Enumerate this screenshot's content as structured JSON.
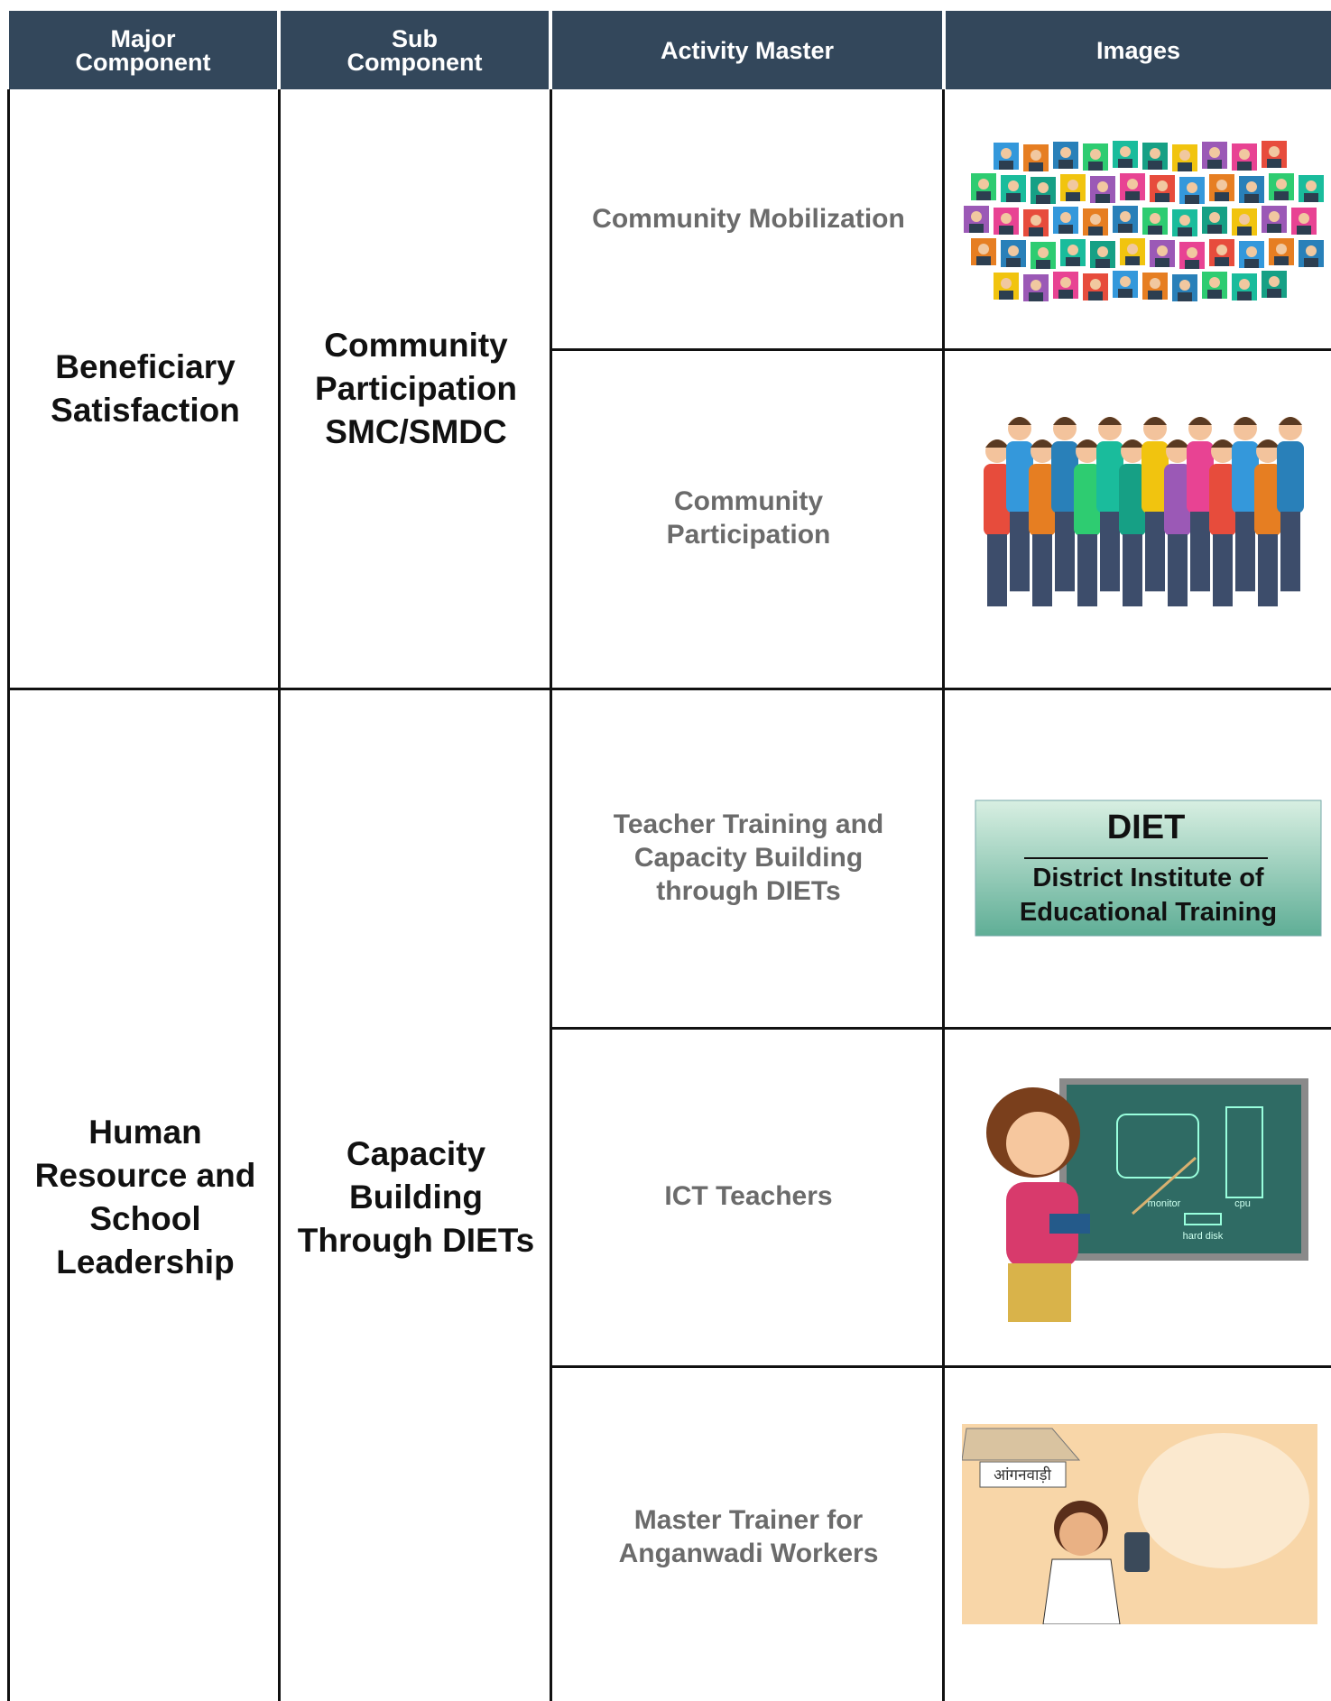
{
  "table": {
    "headers": [
      "Major Component",
      "Sub Component",
      "Activity Master",
      "Images"
    ],
    "rows": [
      {
        "major": "Beneficiary Satisfaction",
        "sub": "Community Participation SMC/SMDC",
        "activities": [
          "Community Mobilization",
          "Community Participation"
        ]
      },
      {
        "major": "Human Resource and School Leadership",
        "sub": "Capacity Building Through DIETs",
        "activities": [
          "Teacher Training and Capacity Building through DIETs",
          "ICT Teachers",
          "Master Trainer for Anganwadi Workers"
        ]
      }
    ]
  },
  "images": {
    "diet": {
      "title": "DIET",
      "subtitle": "District Institute of Educational Training"
    },
    "ict": {
      "labels": [
        "monitor",
        "cpu",
        "hard disk"
      ]
    },
    "anganwadi": {
      "sign": "आंगनवाड़ी"
    }
  }
}
